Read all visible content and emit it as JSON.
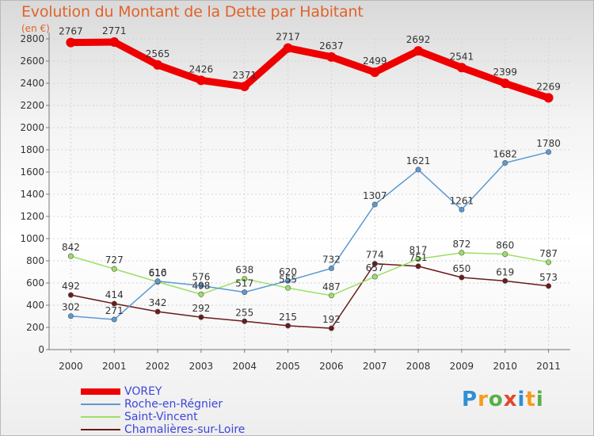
{
  "chart_data": {
    "type": "line",
    "title": "Evolution du Montant de la Dette par Habitant",
    "unit": "(en €)",
    "x": [
      "2000",
      "2001",
      "2002",
      "2003",
      "2004",
      "2005",
      "2006",
      "2007",
      "2008",
      "2009",
      "2010",
      "2011"
    ],
    "ylim": [
      0,
      2800
    ],
    "yticks": [
      0,
      200,
      400,
      600,
      800,
      1000,
      1200,
      1400,
      1600,
      1800,
      2000,
      2200,
      2400,
      2600,
      2800
    ],
    "grid": true,
    "legend_position": "bottom-left",
    "series": [
      {
        "name": "VOREY",
        "color": "#ee0000",
        "values": [
          2767,
          2771,
          2565,
          2426,
          2371,
          2717,
          2637,
          2499,
          2692,
          2541,
          2399,
          2269
        ]
      },
      {
        "name": "Roche-en-Régnier",
        "color": "#5b9ad2",
        "values": [
          302,
          271,
          616,
          576,
          517,
          620,
          732,
          1307,
          1621,
          1261,
          1682,
          1780
        ]
      },
      {
        "name": "Saint-Vincent",
        "color": "#9be063",
        "values": [
          842,
          727,
          610,
          498,
          638,
          555,
          487,
          657,
          817,
          872,
          860,
          787
        ]
      },
      {
        "name": "Chamalières-sur-Loire",
        "color": "#6b1a1a",
        "values": [
          492,
          414,
          342,
          292,
          255,
          215,
          192,
          774,
          751,
          650,
          619,
          573
        ]
      }
    ]
  },
  "brand": [
    "P",
    "r",
    "o",
    "x",
    "i",
    "t",
    "i"
  ]
}
